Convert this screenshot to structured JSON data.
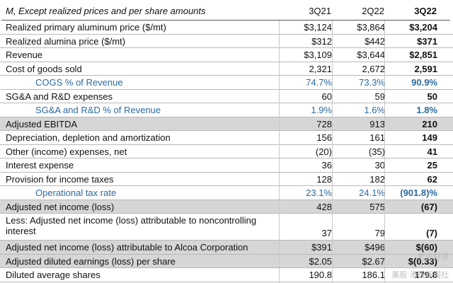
{
  "header": {
    "label": "M, Except realized prices and per share amounts",
    "cols": [
      "3Q21",
      "2Q22",
      "3Q22"
    ]
  },
  "rows": [
    {
      "label": "Realized primary aluminum price ($/mt)",
      "values": [
        "$3,124",
        "$3,864",
        "$3,204"
      ],
      "style": "normal"
    },
    {
      "label": "Realized alumina price ($/mt)",
      "values": [
        "$312",
        "$442",
        "$371"
      ],
      "style": "normal"
    },
    {
      "label": "Revenue",
      "values": [
        "$3,109",
        "$3,644",
        "$2,851"
      ],
      "style": "normal"
    },
    {
      "label": "Cost of goods sold",
      "values": [
        "2,321",
        "2,672",
        "2,591"
      ],
      "style": "normal"
    },
    {
      "label": "COGS % of Revenue",
      "values": [
        "74.7%",
        "73.3%",
        "90.9%"
      ],
      "style": "sub"
    },
    {
      "label": "SG&A and R&D expenses",
      "values": [
        "60",
        "59",
        "50"
      ],
      "style": "normal"
    },
    {
      "label": "SG&A and R&D % of Revenue",
      "values": [
        "1.9%",
        "1.6%",
        "1.8%"
      ],
      "style": "sub"
    },
    {
      "label": "Adjusted EBITDA",
      "values": [
        "728",
        "913",
        "210"
      ],
      "style": "shade"
    },
    {
      "label": "Depreciation, depletion and amortization",
      "values": [
        "156",
        "161",
        "149"
      ],
      "style": "normal"
    },
    {
      "label": "Other (income) expenses, net",
      "values": [
        "(20)",
        "(35)",
        "41"
      ],
      "style": "normal"
    },
    {
      "label": "Interest expense",
      "values": [
        "36",
        "30",
        "25"
      ],
      "style": "normal"
    },
    {
      "label": "Provision for income taxes",
      "values": [
        "128",
        "182",
        "62"
      ],
      "style": "normal"
    },
    {
      "label": "Operational tax rate",
      "values": [
        "23.1%",
        "24.1%",
        "(901.8)%"
      ],
      "style": "sub"
    },
    {
      "label": "Adjusted net income (loss)",
      "values": [
        "428",
        "575",
        "(67)"
      ],
      "style": "shade"
    },
    {
      "label": "Less: Adjusted net income (loss) attributable to noncontrolling interest",
      "values": [
        "37",
        "79",
        "(7)"
      ],
      "style": "tall"
    },
    {
      "label": "Adjusted net income (loss) attributable to Alcoa Corporation",
      "values": [
        "$391",
        "$496",
        "$(60)"
      ],
      "style": "shade"
    },
    {
      "label": "Adjusted diluted earnings (loss) per share",
      "values": [
        "$2.05",
        "$2.67",
        "$(0.33)"
      ],
      "style": "shade"
    },
    {
      "label": "Diluted average shares",
      "values": [
        "190.8",
        "186.1",
        "179.8"
      ],
      "style": "normal"
    }
  ],
  "watermark": {
    "line1": "老虎财经",
    "line2": "美股·港股新闻社"
  }
}
